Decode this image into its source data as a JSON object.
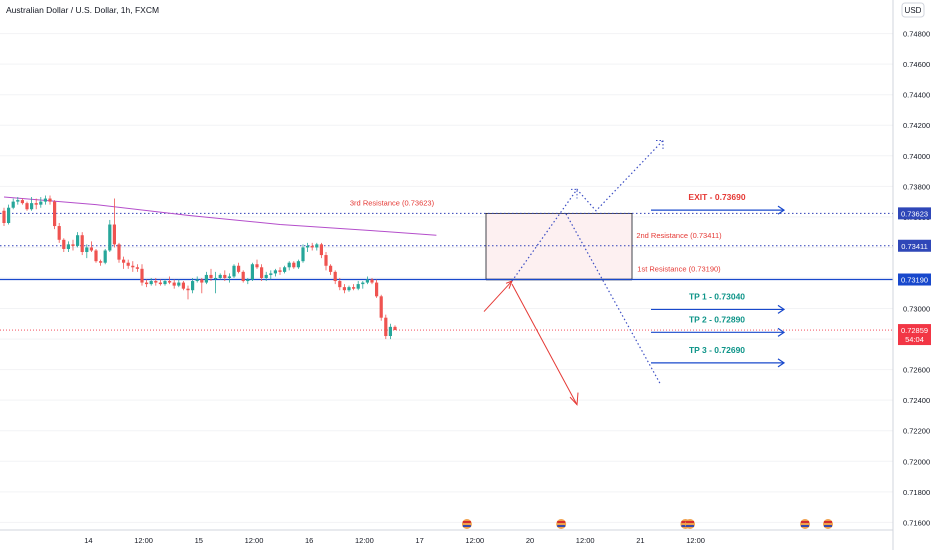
{
  "title": "Australian Dollar / U.S. Dollar, 1h, FXCM",
  "currency": "USD",
  "colors": {
    "up": "#26a69a",
    "down": "#ef5350",
    "support": "#1848cc",
    "resistance_line": "#2f3fb8",
    "ma": "#b44ecb",
    "red": "#e53935",
    "teal": "#0d9488",
    "dotted": "#3d4fc4",
    "price_badge": "#f23645"
  },
  "chart_data": {
    "type": "candlestick",
    "ylim": [
      0.7155,
      0.7502
    ],
    "y_ticks": [
      "0.71600",
      "0.71800",
      "0.72000",
      "0.72200",
      "0.72400",
      "0.72600",
      "0.72800",
      "0.73000",
      "0.73200",
      "0.73400",
      "0.73600",
      "0.73800",
      "0.74000",
      "0.74200",
      "0.74400",
      "0.74600",
      "0.74800"
    ],
    "x_ticks": [
      {
        "label": "14",
        "x": 14
      },
      {
        "label": "12:00",
        "x": 26
      },
      {
        "label": "15",
        "x": 38
      },
      {
        "label": "12:00",
        "x": 50
      },
      {
        "label": "16",
        "x": 62
      },
      {
        "label": "12:00",
        "x": 74
      },
      {
        "label": "17",
        "x": 86
      },
      {
        "label": "12:00",
        "x": 98
      },
      {
        "label": "20",
        "x": 110
      },
      {
        "label": "12:00",
        "x": 122
      },
      {
        "label": "21",
        "x": 134
      },
      {
        "label": "12:00",
        "x": 146
      }
    ],
    "candles": [
      [
        0.7364,
        0.7366,
        0.7354,
        0.7356
      ],
      [
        0.7356,
        0.7368,
        0.7355,
        0.7366
      ],
      [
        0.7366,
        0.7372,
        0.7365,
        0.737
      ],
      [
        0.737,
        0.7373,
        0.7368,
        0.7371
      ],
      [
        0.7371,
        0.7372,
        0.7368,
        0.7369
      ],
      [
        0.7369,
        0.737,
        0.7364,
        0.7365
      ],
      [
        0.7365,
        0.7373,
        0.7364,
        0.7369
      ],
      [
        0.7369,
        0.7372,
        0.7365,
        0.7368
      ],
      [
        0.7368,
        0.7373,
        0.7366,
        0.737
      ],
      [
        0.737,
        0.7374,
        0.7368,
        0.7372
      ],
      [
        0.7372,
        0.7374,
        0.7368,
        0.737
      ],
      [
        0.737,
        0.7371,
        0.7352,
        0.7354
      ],
      [
        0.7354,
        0.7356,
        0.7343,
        0.7345
      ],
      [
        0.7345,
        0.7346,
        0.7337,
        0.7339
      ],
      [
        0.7339,
        0.7344,
        0.7337,
        0.7342
      ],
      [
        0.7342,
        0.7345,
        0.7338,
        0.7341
      ],
      [
        0.7341,
        0.735,
        0.734,
        0.7348
      ],
      [
        0.7348,
        0.735,
        0.7335,
        0.7337
      ],
      [
        0.7337,
        0.7342,
        0.7333,
        0.734
      ],
      [
        0.734,
        0.7344,
        0.7337,
        0.7338
      ],
      [
        0.7338,
        0.7339,
        0.733,
        0.7331
      ],
      [
        0.7331,
        0.7332,
        0.7328,
        0.733
      ],
      [
        0.733,
        0.7339,
        0.7329,
        0.7338
      ],
      [
        0.7338,
        0.7358,
        0.7337,
        0.7355
      ],
      [
        0.7355,
        0.7372,
        0.734,
        0.7342
      ],
      [
        0.7342,
        0.7343,
        0.733,
        0.7332
      ],
      [
        0.7332,
        0.7334,
        0.7326,
        0.733
      ],
      [
        0.733,
        0.7332,
        0.7326,
        0.7328
      ],
      [
        0.7328,
        0.7331,
        0.7324,
        0.7327
      ],
      [
        0.7327,
        0.7329,
        0.7324,
        0.7326
      ],
      [
        0.7326,
        0.7329,
        0.7315,
        0.7317
      ],
      [
        0.7317,
        0.7319,
        0.7314,
        0.7316
      ],
      [
        0.7316,
        0.732,
        0.7315,
        0.7318
      ],
      [
        0.7318,
        0.732,
        0.7315,
        0.7317
      ],
      [
        0.7317,
        0.7319,
        0.7315,
        0.7316
      ],
      [
        0.7316,
        0.7319,
        0.7315,
        0.7318
      ],
      [
        0.7318,
        0.7321,
        0.7316,
        0.7317
      ],
      [
        0.7317,
        0.7319,
        0.7313,
        0.7315
      ],
      [
        0.7315,
        0.7319,
        0.7314,
        0.7317
      ],
      [
        0.7317,
        0.7318,
        0.7312,
        0.7313
      ],
      [
        0.7313,
        0.7315,
        0.7306,
        0.7312
      ],
      [
        0.7312,
        0.732,
        0.731,
        0.7318
      ],
      [
        0.7318,
        0.7321,
        0.7317,
        0.7319
      ],
      [
        0.7319,
        0.732,
        0.731,
        0.7317
      ],
      [
        0.7317,
        0.7324,
        0.7316,
        0.7322
      ],
      [
        0.7322,
        0.7326,
        0.7318,
        0.732
      ],
      [
        0.732,
        0.7324,
        0.731,
        0.732
      ],
      [
        0.732,
        0.7323,
        0.7319,
        0.7322
      ],
      [
        0.7322,
        0.7325,
        0.7318,
        0.732
      ],
      [
        0.732,
        0.7323,
        0.7317,
        0.7321
      ],
      [
        0.7321,
        0.7329,
        0.732,
        0.7328
      ],
      [
        0.7328,
        0.733,
        0.7323,
        0.7324
      ],
      [
        0.7324,
        0.7325,
        0.7317,
        0.7318
      ],
      [
        0.7318,
        0.732,
        0.7316,
        0.7319
      ],
      [
        0.7319,
        0.733,
        0.7318,
        0.7329
      ],
      [
        0.7329,
        0.7332,
        0.7326,
        0.7327
      ],
      [
        0.7327,
        0.7329,
        0.7318,
        0.732
      ],
      [
        0.732,
        0.7324,
        0.7318,
        0.7322
      ],
      [
        0.7322,
        0.7325,
        0.7319,
        0.7323
      ],
      [
        0.7323,
        0.7326,
        0.7321,
        0.7325
      ],
      [
        0.7325,
        0.7327,
        0.7322,
        0.7324
      ],
      [
        0.7324,
        0.7328,
        0.7323,
        0.7327
      ],
      [
        0.7327,
        0.7331,
        0.7325,
        0.733
      ],
      [
        0.733,
        0.7331,
        0.7326,
        0.7327
      ],
      [
        0.7327,
        0.7332,
        0.7326,
        0.7331
      ],
      [
        0.7331,
        0.7342,
        0.733,
        0.734
      ],
      [
        0.734,
        0.7343,
        0.7337,
        0.7341
      ],
      [
        0.7341,
        0.7343,
        0.7338,
        0.734
      ],
      [
        0.734,
        0.7343,
        0.7338,
        0.7342
      ],
      [
        0.7342,
        0.7343,
        0.7333,
        0.7335
      ],
      [
        0.7335,
        0.7337,
        0.7325,
        0.7328
      ],
      [
        0.7328,
        0.7329,
        0.7322,
        0.7324
      ],
      [
        0.7324,
        0.7325,
        0.7316,
        0.7318
      ],
      [
        0.7318,
        0.732,
        0.7312,
        0.7314
      ],
      [
        0.7314,
        0.7316,
        0.731,
        0.7312
      ],
      [
        0.7312,
        0.7315,
        0.7311,
        0.7314
      ],
      [
        0.7314,
        0.7316,
        0.7312,
        0.7313
      ],
      [
        0.7313,
        0.7318,
        0.7312,
        0.7316
      ],
      [
        0.7316,
        0.7318,
        0.7313,
        0.7317
      ],
      [
        0.7317,
        0.7321,
        0.7316,
        0.7319
      ],
      [
        0.7319,
        0.732,
        0.7316,
        0.7317
      ],
      [
        0.7317,
        0.7319,
        0.7307,
        0.7308
      ],
      [
        0.7308,
        0.7309,
        0.7292,
        0.7294
      ],
      [
        0.7294,
        0.7296,
        0.728,
        0.7282
      ],
      [
        0.7282,
        0.729,
        0.728,
        0.7288
      ],
      [
        0.7288,
        0.7289,
        0.7286,
        0.72859
      ]
    ],
    "ma_line": [
      [
        0,
        0.7373
      ],
      [
        20,
        0.7368
      ],
      [
        40,
        0.7361
      ],
      [
        60,
        0.7355
      ],
      [
        80,
        0.7351
      ],
      [
        94,
        0.7348
      ]
    ],
    "last_price": {
      "value": 0.72859,
      "label": "0.72859",
      "countdown": "54:04"
    },
    "levels": [
      {
        "name": "3rd Resistance",
        "value": 0.73623,
        "label": "3rd Resistance (0.73623)",
        "badge": "0.73623"
      },
      {
        "name": "2nd Resistance",
        "value": 0.73411,
        "label": "2nd Resistance (0.73411)",
        "badge": "0.73411"
      },
      {
        "name": "1st Resistance",
        "value": 0.7319,
        "label": "1st Resistance (0.73190)",
        "badge": "0.73190"
      }
    ],
    "targets": [
      {
        "label": "EXIT - 0.73690",
        "value": 0.7369,
        "color": "red"
      },
      {
        "label": "TP 1 - 0.73040",
        "value": 0.7304,
        "color": "teal"
      },
      {
        "label": "TP 2 - 0.72890",
        "value": 0.7289,
        "color": "teal"
      },
      {
        "label": "TP 3 - 0.72690",
        "value": 0.7269,
        "color": "teal"
      }
    ],
    "zones": [
      {
        "name": "risk-zone",
        "from": 0.7319,
        "to": 0.73623
      },
      {
        "name": "reward-zone",
        "from": 0.727,
        "to": 0.7319
      }
    ],
    "events": [
      {
        "x": 86.5
      },
      {
        "x": 107
      },
      {
        "x": 134
      },
      {
        "x": 135
      },
      {
        "x": 160
      },
      {
        "x": 165
      }
    ]
  }
}
